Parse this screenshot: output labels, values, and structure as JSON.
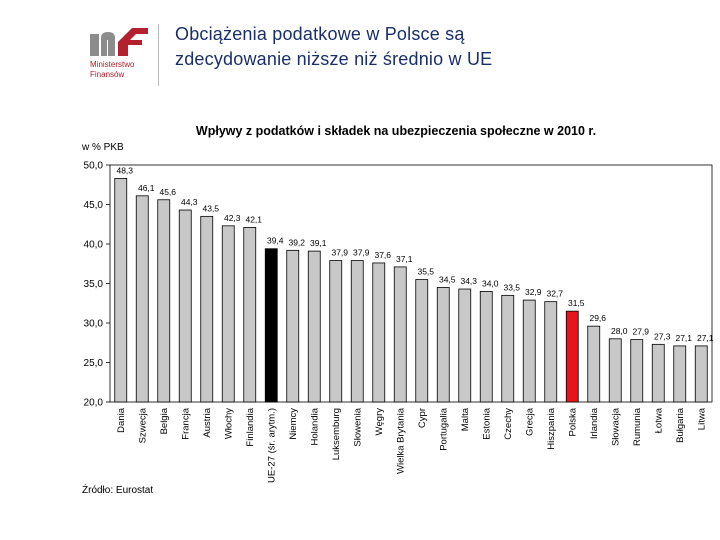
{
  "brand": {
    "name_line1": "Ministerstwo",
    "name_line2": "Finansów",
    "primary_color": "#b3202e",
    "secondary_color": "#8c8c8c"
  },
  "slide": {
    "title_line1": "Obciążenia podatkowe w Polsce są",
    "title_line2": "zdecydowanie niższe niż średnio w UE",
    "title_color": "#1a2f6a"
  },
  "chart_data": {
    "type": "bar",
    "title": "Wpływy z podatków i składek na ubezpieczenia społeczne w 2010 r.",
    "ylabel": "w % PKB",
    "xlabel": "",
    "ylim": [
      20,
      50
    ],
    "yticks": [
      {
        "value": 50,
        "label": "50,0"
      },
      {
        "value": 45,
        "label": "45,0"
      },
      {
        "value": 40,
        "label": "40,0"
      },
      {
        "value": 35,
        "label": "35,0"
      },
      {
        "value": 30,
        "label": "30,0"
      },
      {
        "value": 25,
        "label": "25,0"
      },
      {
        "value": 20,
        "label": "20,0"
      }
    ],
    "categories": [
      "Dania",
      "Szwecja",
      "Belgia",
      "Francja",
      "Austria",
      "Włochy",
      "Finlandia",
      "UE-27 (śr. arytm.)",
      "Niemcy",
      "Holandia",
      "Luksemburg",
      "Słowenia",
      "Węgry",
      "Wielka Brytania",
      "Cypr",
      "Portugalia",
      "Malta",
      "Estonia",
      "Czechy",
      "Grecja",
      "Hiszpania",
      "Polska",
      "Irlandia",
      "Słowacja",
      "Rumunia",
      "Łotwa",
      "Bułgaria",
      "Litwa"
    ],
    "values": [
      48.3,
      46.1,
      45.6,
      44.3,
      43.5,
      42.3,
      42.1,
      39.4,
      39.2,
      39.1,
      37.9,
      37.9,
      37.6,
      37.1,
      35.5,
      34.5,
      34.3,
      34.0,
      33.5,
      32.9,
      32.7,
      31.5,
      29.6,
      28.0,
      27.9,
      27.3,
      27.1,
      27.1
    ],
    "value_labels": [
      "48,3",
      "46,1",
      "45,6",
      "44,3",
      "43,5",
      "42,3",
      "42,1",
      "39,4",
      "39,2",
      "39,1",
      "37,9",
      "37,9",
      "37,6",
      "37,1",
      "35,5",
      "34,5",
      "34,3",
      "34,0",
      "33,5",
      "32,9",
      "32,7",
      "31,5",
      "29,6",
      "28,0",
      "27,9",
      "27,3",
      "27,1",
      "27,1"
    ],
    "colors": {
      "default": "#c8c8c8",
      "eu_average": "#000000",
      "poland": "#e8141b"
    },
    "highlight": {
      "UE-27 (śr. arytm.)": "eu_average",
      "Polska": "poland"
    },
    "grid": false,
    "legend": "none"
  },
  "source_note": "Źródło: Eurostat"
}
